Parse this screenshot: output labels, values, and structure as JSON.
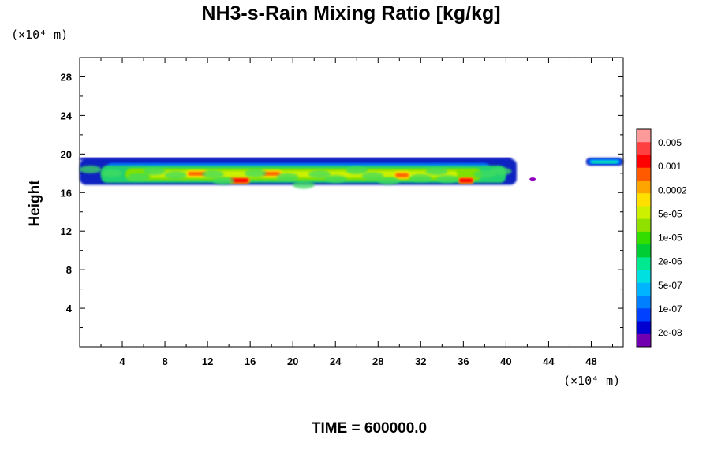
{
  "chart_data": {
    "type": "heatmap",
    "title": "NH3-s-Rain Mixing Ratio [kg/kg]",
    "xlabel": "",
    "ylabel": "Height",
    "x_unit_label": "(×10⁴ m)",
    "y_unit_label": "(×10⁴ m)",
    "xlim": [
      0,
      51
    ],
    "ylim": [
      0,
      30
    ],
    "x_ticks": [
      4,
      8,
      12,
      16,
      20,
      24,
      28,
      32,
      36,
      40,
      44,
      48
    ],
    "y_ticks": [
      4,
      8,
      12,
      16,
      20,
      24,
      28
    ],
    "colorbar": {
      "labels": [
        "0.005",
        "0.001",
        "0.0002",
        "5e-05",
        "1e-05",
        "2e-06",
        "5e-07",
        "1e-07",
        "2e-08"
      ],
      "colors": [
        "#ff9a9a",
        "#ff4040",
        "#ff0000",
        "#ff5a00",
        "#ffa500",
        "#ffe000",
        "#ccf000",
        "#90e000",
        "#33dd00",
        "#00cc33",
        "#00e890",
        "#00e0e0",
        "#00b4ff",
        "#0080ff",
        "#0040ff",
        "#0000d0",
        "#7000b0"
      ]
    },
    "field_bands": [
      {
        "x": [
          0,
          41
        ],
        "y": [
          16.8,
          19.5
        ],
        "level": "low"
      },
      {
        "x": [
          2,
          40
        ],
        "y": [
          17.0,
          18.8
        ],
        "level": "mid"
      },
      {
        "x": [
          10,
          12
        ],
        "y": [
          17.6,
          18.3
        ],
        "level": "high"
      },
      {
        "x": [
          14,
          16
        ],
        "y": [
          16.9,
          17.6
        ],
        "level": "peak"
      },
      {
        "x": [
          17,
          19
        ],
        "y": [
          17.6,
          18.3
        ],
        "level": "high"
      },
      {
        "x": [
          29.5,
          31
        ],
        "y": [
          17.4,
          18.2
        ],
        "level": "high"
      },
      {
        "x": [
          35.5,
          37
        ],
        "y": [
          16.9,
          17.6
        ],
        "level": "peak"
      },
      {
        "x": [
          47.5,
          51
        ],
        "y": [
          18.8,
          19.6
        ],
        "level": "low"
      }
    ],
    "time_label": "TIME = 600000.0"
  }
}
